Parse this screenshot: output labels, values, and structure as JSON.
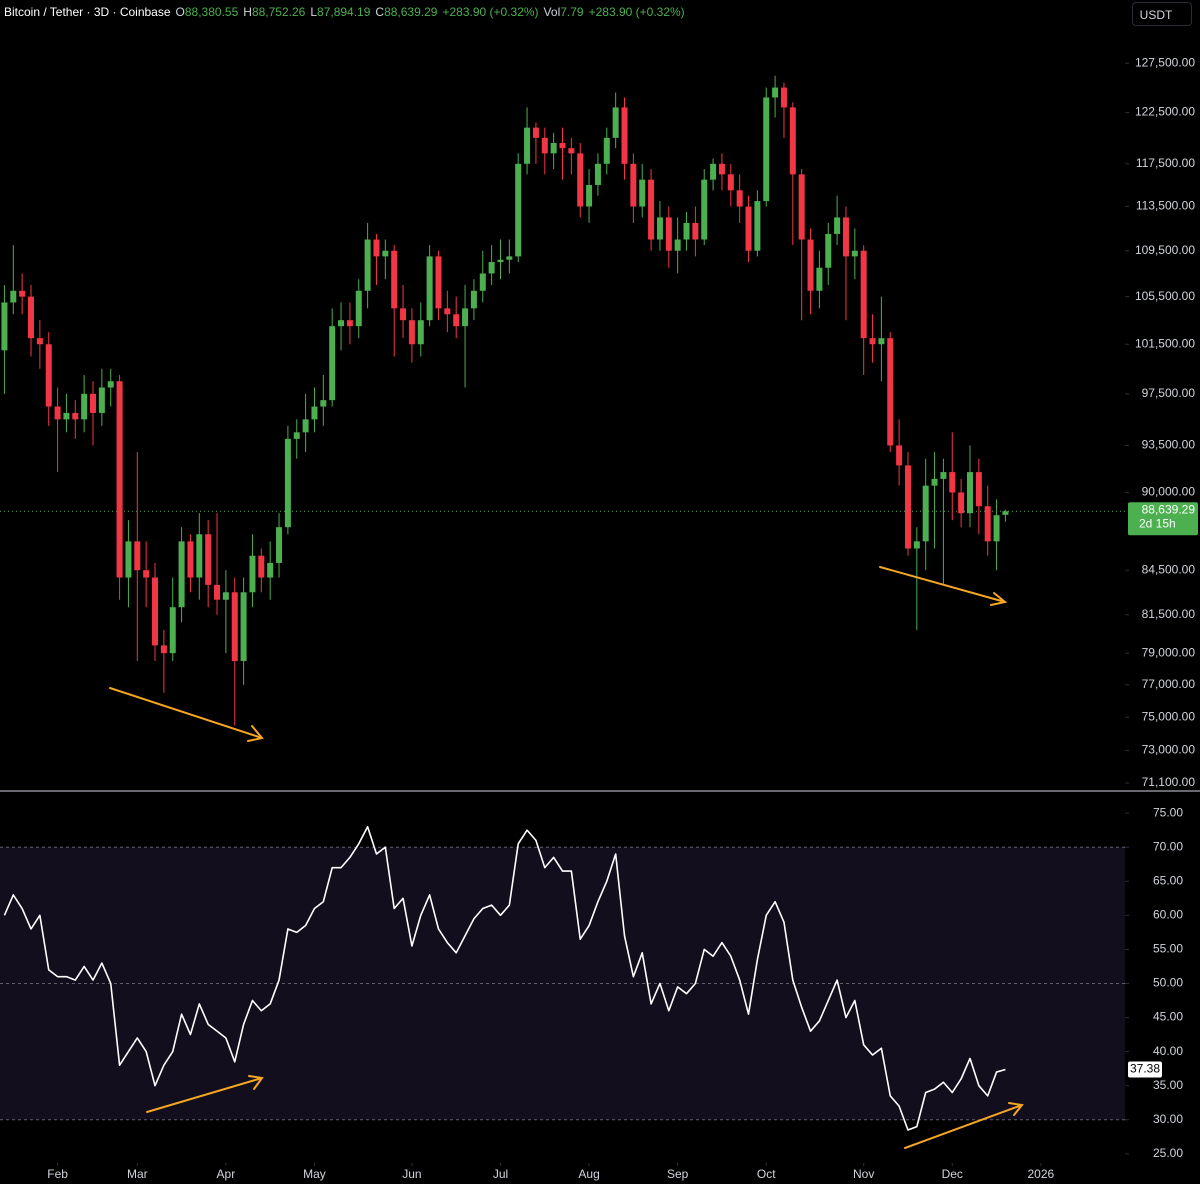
{
  "header": {
    "items": [
      {
        "text": "Bitcoin / Tether · 3D · Coinbase",
        "color": "#ffffff"
      },
      {
        "text": "O",
        "color": "#d1d4dc"
      },
      {
        "text": "88,380.55",
        "color": "#4caf50"
      },
      {
        "text": "H",
        "color": "#d1d4dc"
      },
      {
        "text": "88,752.26",
        "color": "#4caf50"
      },
      {
        "text": "L",
        "color": "#d1d4dc"
      },
      {
        "text": "87,894.19",
        "color": "#4caf50"
      },
      {
        "text": "C",
        "color": "#d1d4dc"
      },
      {
        "text": "88,639.29",
        "color": "#4caf50"
      },
      {
        "text": "+283.90 (+0.32%)",
        "color": "#4caf50"
      },
      {
        "text": "Vol",
        "color": "#d1d4dc"
      },
      {
        "text": "7.79",
        "color": "#4caf50"
      },
      {
        "text": "+283.90 (+0.32%)",
        "color": "#4caf50"
      }
    ],
    "currency_button": "USDT"
  },
  "chart_data": [
    {
      "type": "candlestick",
      "log": true,
      "up_color": "#4caf50",
      "down_color": "#f23645",
      "xlim": [
        -0.5,
        126.5
      ],
      "ylim": [
        70700,
        134200
      ],
      "yticks": [
        {
          "value": 127500,
          "label": "127,500.00"
        },
        {
          "value": 122500,
          "label": "122,500.00"
        },
        {
          "value": 117500,
          "label": "117,500.00"
        },
        {
          "value": 113500,
          "label": "113,500.00"
        },
        {
          "value": 109500,
          "label": "109,500.00"
        },
        {
          "value": 105500,
          "label": "105,500.00"
        },
        {
          "value": 101500,
          "label": "101,500.00"
        },
        {
          "value": 97500,
          "label": "97,500.00"
        },
        {
          "value": 93500,
          "label": "93,500.00"
        },
        {
          "value": 90000,
          "label": "90,000.00"
        },
        {
          "value": 84500,
          "label": "84,500.00"
        },
        {
          "value": 81500,
          "label": "81,500.00"
        },
        {
          "value": 79000,
          "label": "79,000.00"
        },
        {
          "value": 77000,
          "label": "77,000.00"
        },
        {
          "value": 75000,
          "label": "75,000.00"
        },
        {
          "value": 73000,
          "label": "73,000.00"
        },
        {
          "value": 71100,
          "label": "71,100.00"
        }
      ],
      "price_tag": "88,639.29",
      "countdown": "2d 15h",
      "open": [
        101000,
        105000,
        106000,
        105500,
        102000,
        101500,
        96500,
        95500,
        96000,
        95500,
        97500,
        96000,
        98000,
        98500,
        84000,
        86500,
        84500,
        84000,
        79500,
        79000,
        82000,
        86500,
        84000,
        87000,
        83500,
        82500,
        83000,
        78500,
        83000,
        85500,
        84000,
        85000,
        87500,
        94000,
        94500,
        95500,
        96500,
        97000,
        103000,
        103500,
        103000,
        106000,
        110500,
        109000,
        109500,
        104500,
        103500,
        101500,
        103500,
        109000,
        104500,
        104000,
        103000,
        104500,
        106000,
        107500,
        108500,
        108700,
        109000,
        117500,
        121000,
        120000,
        118500,
        119500,
        119000,
        118500,
        113500,
        115500,
        117500,
        120000,
        123000,
        117500,
        113500,
        116000,
        110500,
        112500,
        109500,
        110500,
        112000,
        110500,
        116000,
        117500,
        116500,
        115000,
        113500,
        109500,
        114000,
        124000,
        125000,
        123000,
        116500,
        110500,
        106000,
        108000,
        111000,
        112500,
        109000,
        109500,
        102000,
        101500,
        102000,
        93500,
        92000,
        86000,
        86500,
        90500,
        91000,
        91500,
        90000,
        88500,
        91500,
        89000,
        86500,
        88380.55
      ],
      "high": [
        106500,
        110000,
        107500,
        106500,
        103500,
        102500,
        98000,
        97500,
        97000,
        99000,
        98500,
        99500,
        99500,
        99000,
        88000,
        93000,
        86500,
        85000,
        80500,
        84000,
        87500,
        87000,
        88500,
        88000,
        88500,
        84500,
        84000,
        84000,
        87000,
        86000,
        86500,
        88500,
        95000,
        95500,
        97500,
        98000,
        99000,
        104500,
        105000,
        105000,
        107000,
        112000,
        111000,
        110500,
        110000,
        106500,
        104500,
        105000,
        110000,
        109500,
        106000,
        105500,
        106500,
        107000,
        109500,
        110000,
        110500,
        110500,
        118500,
        123000,
        121500,
        121000,
        120500,
        121000,
        120000,
        119500,
        117000,
        118500,
        121000,
        124500,
        124000,
        118500,
        117500,
        117000,
        114000,
        113500,
        112500,
        113000,
        113500,
        117000,
        118000,
        118500,
        117500,
        116500,
        114500,
        115000,
        125000,
        126200,
        125500,
        123500,
        117000,
        111500,
        109500,
        112000,
        114500,
        113500,
        111500,
        110000,
        104000,
        105500,
        102500,
        95500,
        93000,
        87500,
        92500,
        93000,
        92500,
        94500,
        91000,
        93500,
        92500,
        90500,
        89500,
        88752.26
      ],
      "low": [
        97500,
        104000,
        104000,
        100500,
        99500,
        95000,
        91500,
        94500,
        94000,
        94500,
        93500,
        95000,
        96500,
        82500,
        82000,
        78500,
        82000,
        78500,
        76500,
        78500,
        81000,
        83000,
        82500,
        82000,
        81500,
        79000,
        74500,
        77000,
        82000,
        83000,
        82500,
        84000,
        87000,
        92500,
        93000,
        94500,
        95000,
        96500,
        101000,
        101500,
        102000,
        104500,
        106500,
        107000,
        100500,
        102000,
        100000,
        100500,
        103000,
        103500,
        102500,
        102000,
        98000,
        103500,
        105000,
        106500,
        107000,
        107500,
        108500,
        116500,
        117500,
        116500,
        117000,
        116000,
        116500,
        112500,
        112000,
        114500,
        116500,
        119000,
        116000,
        112000,
        112500,
        109500,
        109500,
        108000,
        107500,
        109500,
        109000,
        110000,
        115000,
        115000,
        113500,
        112000,
        108500,
        109000,
        113500,
        122000,
        120000,
        110000,
        103500,
        104000,
        104500,
        106500,
        110000,
        103500,
        107000,
        99000,
        100000,
        98500,
        93000,
        90500,
        85500,
        80500,
        84500,
        86000,
        83500,
        88000,
        87500,
        87500,
        87000,
        85500,
        84500,
        87894.19
      ],
      "close": [
        105000,
        106000,
        105500,
        102000,
        101500,
        96500,
        95500,
        96000,
        95500,
        97500,
        96000,
        98000,
        98500,
        84000,
        86500,
        84500,
        84000,
        79500,
        79000,
        82000,
        86500,
        84000,
        87000,
        83500,
        82500,
        83000,
        78500,
        83000,
        85500,
        84000,
        85000,
        87500,
        94000,
        94500,
        95500,
        96500,
        97000,
        103000,
        103500,
        103000,
        106000,
        110500,
        109000,
        109500,
        104500,
        103500,
        101500,
        103500,
        109000,
        104500,
        104000,
        103000,
        104500,
        106000,
        107500,
        108500,
        108700,
        109000,
        117500,
        121000,
        120000,
        118500,
        119500,
        119000,
        118500,
        113500,
        115500,
        117500,
        120000,
        123000,
        117500,
        113500,
        116000,
        110500,
        112500,
        109500,
        110500,
        112000,
        110500,
        116000,
        117500,
        116500,
        115000,
        113500,
        109500,
        114000,
        124000,
        125000,
        123000,
        116500,
        110500,
        106000,
        108000,
        111000,
        112500,
        109000,
        109500,
        102000,
        101500,
        102000,
        93500,
        92000,
        86000,
        86500,
        90500,
        91000,
        91500,
        90000,
        88500,
        91500,
        89000,
        86500,
        88355.39,
        88639.29
      ]
    },
    {
      "type": "line",
      "color": "#ffffff",
      "band_color": "#120e1e",
      "xlim": [
        -0.5,
        126.5
      ],
      "ylim": [
        23.8,
        78.1
      ],
      "yticks": [
        {
          "value": 75,
          "label": "75.00"
        },
        {
          "value": 70,
          "label": "70.00"
        },
        {
          "value": 65,
          "label": "65.00"
        },
        {
          "value": 60,
          "label": "60.00"
        },
        {
          "value": 55,
          "label": "55.00"
        },
        {
          "value": 50,
          "label": "50.00"
        },
        {
          "value": 45,
          "label": "45.00"
        },
        {
          "value": 40,
          "label": "40.00"
        },
        {
          "value": 35,
          "label": "35.00"
        },
        {
          "value": 30,
          "label": "30.00"
        },
        {
          "value": 25,
          "label": "25.00"
        }
      ],
      "levels": [
        70,
        50,
        30
      ],
      "xticks": [
        {
          "value": 6,
          "label": "Feb"
        },
        {
          "value": 15,
          "label": "Mar"
        },
        {
          "value": 25,
          "label": "Apr"
        },
        {
          "value": 35,
          "label": "May"
        },
        {
          "value": 46,
          "label": "Jun"
        },
        {
          "value": 56,
          "label": "Jul"
        },
        {
          "value": 66,
          "label": "Aug"
        },
        {
          "value": 76,
          "label": "Sep"
        },
        {
          "value": 86,
          "label": "Oct"
        },
        {
          "value": 97,
          "label": "Nov"
        },
        {
          "value": 107,
          "label": "Dec"
        },
        {
          "value": 117,
          "label": "2026"
        }
      ],
      "last_label": "37.38",
      "values": [
        60,
        63,
        61,
        58,
        60,
        52,
        51,
        51,
        50.5,
        52.5,
        50.5,
        53,
        50,
        38,
        40,
        42,
        40,
        35,
        38,
        40,
        45.5,
        42.5,
        47,
        44,
        43,
        42,
        38.5,
        44,
        47.5,
        46,
        47,
        50.5,
        58,
        57.5,
        58.5,
        61,
        62,
        67,
        67,
        68.5,
        70.5,
        73,
        69,
        70,
        61,
        62.5,
        55.5,
        60,
        63,
        58,
        56,
        54.5,
        57,
        59.5,
        61,
        61.5,
        60,
        61.5,
        70.5,
        72.5,
        71,
        67,
        68.5,
        66.5,
        66.5,
        56.5,
        58.5,
        62,
        65,
        69,
        57,
        51,
        54.5,
        47,
        50,
        46,
        49.5,
        48.5,
        50,
        55,
        54,
        56,
        54,
        50.5,
        45.5,
        53.5,
        60,
        62,
        59,
        50.5,
        46.5,
        43,
        44.5,
        47.5,
        50.5,
        45,
        47.5,
        41,
        39.5,
        40.5,
        33.5,
        32,
        28.5,
        29,
        34,
        34.5,
        35.5,
        34,
        36,
        39,
        35,
        33.5,
        37,
        37.38
      ]
    }
  ]
}
